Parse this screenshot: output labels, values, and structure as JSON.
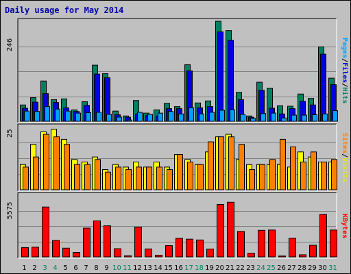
{
  "chart_data": {
    "type": "bar",
    "title": "Daily usage for May 2014",
    "categories": [
      "1",
      "2",
      "3",
      "4",
      "5",
      "6",
      "7",
      "8",
      "9",
      "10",
      "11",
      "12",
      "13",
      "14",
      "15",
      "16",
      "17",
      "18",
      "19",
      "20",
      "21",
      "22",
      "23",
      "24",
      "25",
      "26",
      "27",
      "28",
      "29",
      "30",
      "31"
    ],
    "weekend_days": [
      "3",
      "4",
      "10",
      "11",
      "17",
      "18",
      "24",
      "25",
      "31"
    ],
    "panels": [
      {
        "name": "hits-panel",
        "ymax_label": "246",
        "ylim": [
          0,
          246
        ],
        "legend": [
          {
            "label": "Pages",
            "color": "#00a0ff"
          },
          {
            "label": "/",
            "color": "#000000"
          },
          {
            "label": "Files",
            "color": "#0000e0"
          },
          {
            "label": "/",
            "color": "#000000"
          },
          {
            "label": "Hits",
            "color": "#008060"
          }
        ],
        "series": [
          {
            "name": "Hits",
            "color": "#008060",
            "values": [
              40,
              58,
              99,
              53,
              55,
              28,
              48,
              138,
              117,
              25,
              13,
              51,
              20,
              28,
              44,
              36,
              139,
              45,
              50,
              246,
              223,
              71,
              13,
              96,
              81,
              38,
              37,
              67,
              56,
              183,
              106
            ]
          },
          {
            "name": "Files",
            "color": "#0000e0",
            "values": [
              32,
              47,
              68,
              46,
              33,
              24,
              39,
              116,
              107,
              16,
              10,
              18,
              14,
              13,
              31,
              31,
              124,
              33,
              36,
              220,
              199,
              53,
              10,
              76,
              32,
              18,
              31,
              49,
              40,
              165,
              90
            ]
          },
          {
            "name": "Pages",
            "color": "#00a0ff",
            "values": [
              25,
              24,
              36,
              30,
              25,
              20,
              21,
              22,
              17,
              10,
              3,
              22,
              17,
              20,
              24,
              18,
              33,
              18,
              22,
              27,
              28,
              17,
              7,
              19,
              20,
              8,
              15,
              15,
              16,
              18,
              26
            ]
          }
        ]
      },
      {
        "name": "visits-panel",
        "ymax_label": "25",
        "ylim": [
          0,
          25
        ],
        "legend": [
          {
            "label": "Sites",
            "color": "#ff8000"
          },
          {
            "label": "/",
            "color": "#000000"
          },
          {
            "label": "Visits",
            "color": "#e8e800"
          }
        ],
        "series": [
          {
            "name": "Visits",
            "color": "#ffff00",
            "values": [
              10,
              18,
              23,
              24,
              20,
              12,
              11,
              13,
              8,
              10,
              9,
              11,
              9,
              11,
              9,
              14,
              12,
              10,
              15,
              21,
              22,
              12,
              10,
              10,
              10,
              10,
              9,
              15,
              13,
              11,
              11
            ]
          },
          {
            "name": "Sites",
            "color": "#ff8000",
            "values": [
              9,
              13,
              22,
              21,
              18,
              10,
              10,
              12,
              7,
              9,
              8,
              9,
              9,
              9,
              8,
              14,
              11,
              10,
              19,
              21,
              21,
              18,
              8,
              10,
              12,
              20,
              17,
              11,
              15,
              11,
              12
            ]
          }
        ]
      },
      {
        "name": "kbytes-panel",
        "ymax_label": "5575",
        "ylim": [
          0,
          5575
        ],
        "legend": [
          {
            "label": "KBytes",
            "color": "#ff0000"
          }
        ],
        "series": [
          {
            "name": "KBytes",
            "color": "#ff0000",
            "values": [
              840,
              880,
              4510,
              1490,
              790,
              400,
              2600,
              3260,
              2810,
              740,
              100,
              2690,
              720,
              150,
              1020,
              1680,
              1600,
              1530,
              710,
              4740,
              4940,
              2300,
              330,
              2400,
              2430,
              80,
              1690,
              190,
              1050,
              3840,
              2430
            ]
          }
        ]
      }
    ]
  }
}
